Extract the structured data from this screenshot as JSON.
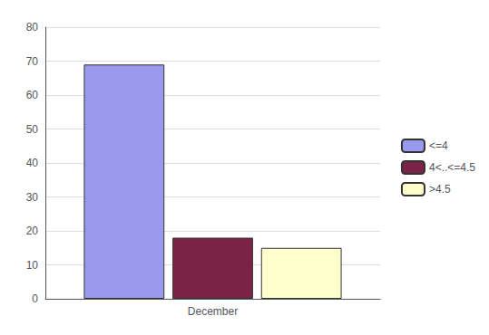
{
  "chart_data": {
    "type": "bar",
    "categories": [
      "December"
    ],
    "series": [
      {
        "name": "<=4",
        "color": "#9999ee",
        "values": [
          69
        ]
      },
      {
        "name": "4<..<=4.5",
        "color": "#7b2346",
        "values": [
          18
        ]
      },
      {
        "name": ">4.5",
        "color": "#ffffcc",
        "values": [
          15
        ]
      }
    ],
    "ylim": [
      0,
      80
    ],
    "yticks": [
      0,
      10,
      20,
      30,
      40,
      50,
      60,
      70,
      80
    ],
    "grid": true,
    "legend": "right"
  }
}
